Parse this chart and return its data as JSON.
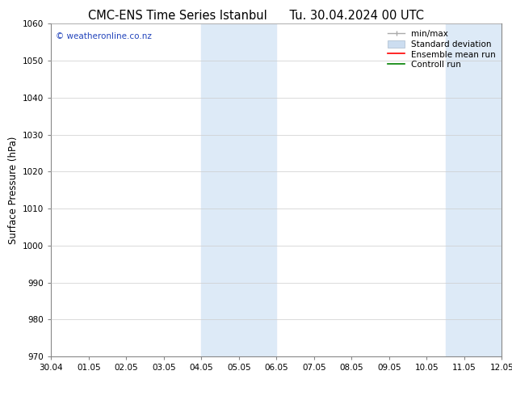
{
  "title_left": "CMC-ENS Time Series Istanbul",
  "title_right": "Tu. 30.04.2024 00 UTC",
  "ylabel": "Surface Pressure (hPa)",
  "ylim": [
    970,
    1060
  ],
  "yticks": [
    970,
    980,
    990,
    1000,
    1010,
    1020,
    1030,
    1040,
    1050,
    1060
  ],
  "xtick_labels": [
    "30.04",
    "01.05",
    "02.05",
    "03.05",
    "04.05",
    "05.05",
    "06.05",
    "07.05",
    "08.05",
    "09.05",
    "10.05",
    "11.05",
    "12.05"
  ],
  "shaded_regions": [
    {
      "xstart": 4.0,
      "xend": 6.0
    },
    {
      "xstart": 10.5,
      "xend": 12.0
    }
  ],
  "shaded_color": "#ddeaf7",
  "background_color": "#ffffff",
  "watermark": "© weatheronline.co.nz",
  "watermark_color": "#2244bb",
  "title_fontsize": 10.5,
  "tick_fontsize": 7.5,
  "axis_label_fontsize": 8.5,
  "legend_fontsize": 7.5,
  "grid_color": "#cccccc",
  "spine_color": "#888888",
  "minmax_color": "#aaaaaa",
  "std_facecolor": "#ccddf0",
  "std_edgecolor": "#aabbcc",
  "ensemble_color": "red",
  "control_color": "green"
}
